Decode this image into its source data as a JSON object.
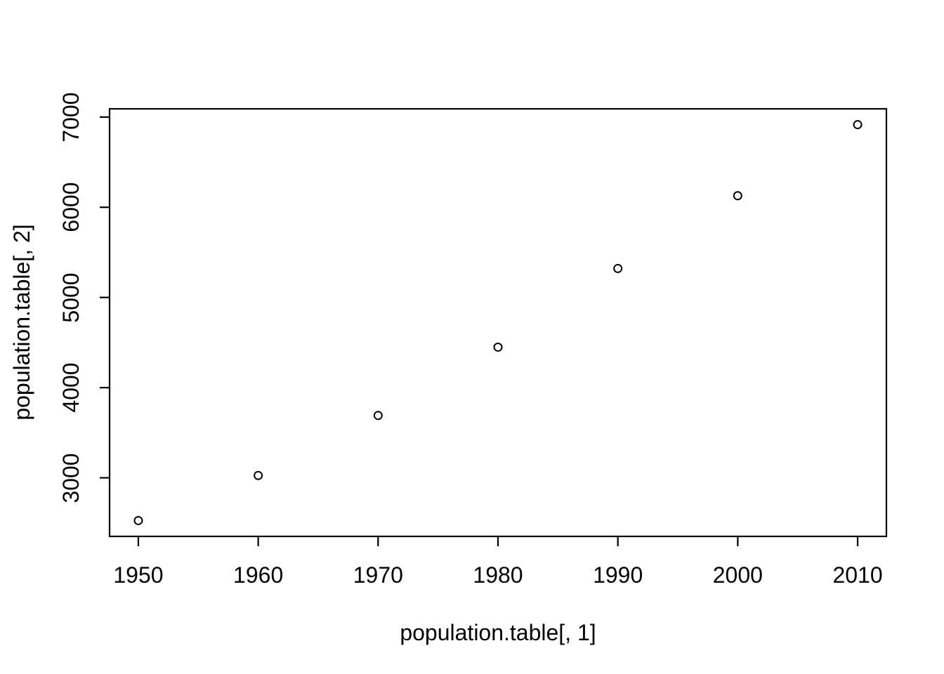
{
  "page": {
    "background_color": "#ffffff"
  },
  "chart_data": {
    "type": "scatter",
    "title": "",
    "xlabel": "population.table[, 1]",
    "ylabel": "population.table[, 2]",
    "x": [
      1950,
      1960,
      1970,
      1980,
      1990,
      2000,
      2010
    ],
    "y": [
      2526,
      3026,
      3691,
      4449,
      5321,
      6128,
      6916
    ],
    "x_ticks": [
      1950,
      1960,
      1970,
      1980,
      1990,
      2000,
      2010
    ],
    "y_ticks": [
      3000,
      4000,
      5000,
      6000,
      7000
    ],
    "x_tick_labels": [
      "1950",
      "1960",
      "1970",
      "1980",
      "1990",
      "2000",
      "2010"
    ],
    "y_tick_labels": [
      "3000",
      "4000",
      "5000",
      "6000",
      "7000"
    ],
    "xlim": [
      1947.6,
      2012.4
    ],
    "ylim": [
      2350.4,
      7091.6
    ],
    "grid": false,
    "legend": "none",
    "marker": "open-circle",
    "point_color": "#000000",
    "axis_color": "#000000"
  }
}
